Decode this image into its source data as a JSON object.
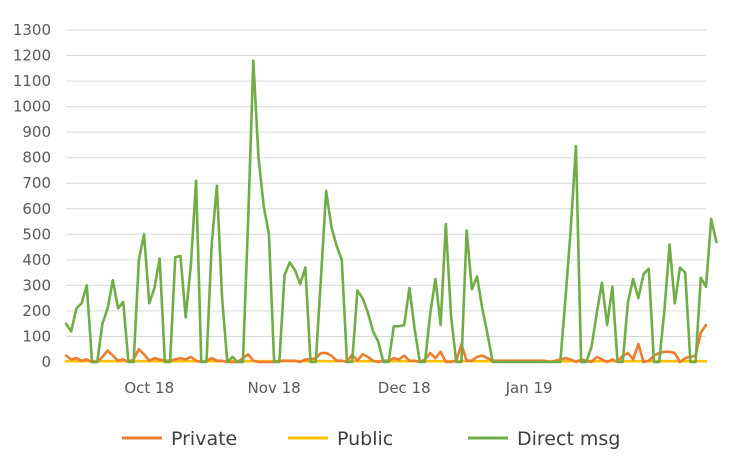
{
  "chart_data": {
    "type": "line",
    "title": "",
    "xlabel": "",
    "ylabel": "",
    "ylim": [
      0,
      1300
    ],
    "yticks": [
      0,
      100,
      200,
      300,
      400,
      500,
      600,
      700,
      800,
      900,
      1000,
      1100,
      1200,
      1300
    ],
    "x_ticks": [
      {
        "label": "Oct 18",
        "index": 16
      },
      {
        "label": "Nov 18",
        "index": 40
      },
      {
        "label": "Dec 18",
        "index": 65
      },
      {
        "label": "Jan 19",
        "index": 89
      }
    ],
    "grid": "horizontal",
    "legend": "bottom",
    "series": [
      {
        "name": "Private",
        "color": "#ED7D31",
        "values": [
          25,
          10,
          15,
          5,
          10,
          0,
          0,
          20,
          45,
          25,
          5,
          10,
          0,
          10,
          50,
          30,
          5,
          15,
          10,
          5,
          5,
          10,
          15,
          10,
          20,
          5,
          0,
          5,
          15,
          5,
          5,
          0,
          0,
          0,
          15,
          30,
          5,
          0,
          0,
          0,
          0,
          5,
          5,
          5,
          5,
          0,
          10,
          10,
          15,
          35,
          35,
          25,
          5,
          5,
          0,
          30,
          5,
          30,
          20,
          5,
          0,
          5,
          5,
          15,
          10,
          25,
          5,
          5,
          0,
          10,
          35,
          15,
          40,
          0,
          0,
          5,
          70,
          5,
          5,
          20,
          25,
          15,
          5,
          5,
          5,
          5,
          5,
          5,
          5,
          5,
          5,
          5,
          5,
          0,
          5,
          10,
          15,
          10,
          0,
          10,
          5,
          0,
          20,
          10,
          0,
          10,
          0,
          25,
          35,
          10,
          70,
          0,
          5,
          25,
          35,
          40,
          40,
          35,
          0,
          15,
          20,
          25,
          115,
          145
        ]
      },
      {
        "name": "Public",
        "color": "#FFC000",
        "values": [
          3,
          3,
          3,
          3,
          3,
          3,
          3,
          3,
          3,
          3,
          3,
          3,
          3,
          3,
          3,
          3,
          3,
          3,
          3,
          3,
          3,
          3,
          3,
          3,
          3,
          3,
          3,
          3,
          3,
          3,
          3,
          3,
          3,
          3,
          3,
          3,
          3,
          3,
          3,
          3,
          3,
          3,
          3,
          3,
          3,
          3,
          3,
          3,
          3,
          3,
          3,
          3,
          3,
          3,
          3,
          3,
          3,
          3,
          3,
          3,
          3,
          3,
          3,
          3,
          3,
          3,
          3,
          3,
          3,
          3,
          3,
          3,
          3,
          3,
          3,
          3,
          3,
          3,
          3,
          3,
          3,
          3,
          3,
          3,
          3,
          3,
          3,
          3,
          3,
          3,
          3,
          3,
          3,
          3,
          3,
          3,
          3,
          3,
          3,
          3,
          3,
          3,
          3,
          3,
          3,
          3,
          3,
          3,
          3,
          3,
          3,
          3,
          3,
          3,
          3,
          3,
          3,
          3,
          3,
          3,
          3,
          3,
          3,
          3
        ]
      },
      {
        "name": "Direct msg",
        "color": "#70AD47",
        "values": [
          150,
          120,
          210,
          230,
          300,
          0,
          0,
          150,
          210,
          320,
          210,
          235,
          0,
          0,
          400,
          500,
          230,
          290,
          405,
          0,
          0,
          410,
          415,
          175,
          380,
          710,
          0,
          0,
          460,
          690,
          250,
          0,
          20,
          0,
          0,
          550,
          1180,
          800,
          610,
          500,
          0,
          0,
          340,
          390,
          360,
          305,
          370,
          0,
          0,
          330,
          670,
          530,
          455,
          400,
          0,
          0,
          280,
          250,
          195,
          120,
          80,
          0,
          0,
          140,
          140,
          145,
          290,
          130,
          0,
          0,
          190,
          325,
          145,
          540,
          180,
          0,
          0,
          515,
          285,
          335,
          210,
          110,
          0,
          0,
          0,
          0,
          0,
          0,
          0,
          0,
          0,
          0,
          0,
          0,
          0,
          0,
          250,
          520,
          845,
          0,
          0,
          60,
          190,
          310,
          145,
          295,
          0,
          0,
          235,
          325,
          250,
          345,
          365,
          0,
          0,
          200,
          460,
          230,
          370,
          350,
          0,
          0,
          330,
          295,
          560,
          470
        ]
      }
    ]
  }
}
